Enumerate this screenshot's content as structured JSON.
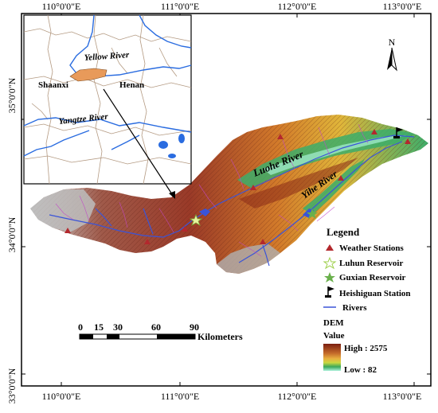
{
  "longitude_ticks": [
    "110°0'0\"E",
    "111°0'0\"E",
    "112°0'0\"E",
    "113°0'0\"E"
  ],
  "latitude_ticks": [
    "35°0'0\"N",
    "34°0'0\"N",
    "33°0'0\"N"
  ],
  "inset": {
    "rivers": {
      "yellow": "Yellow River",
      "yangtze": "Yangtze River"
    },
    "provinces": {
      "shaanxi": "Shaanxi",
      "henan": "Henan"
    }
  },
  "rivers": {
    "luohe": "Luohe River",
    "yihe": "Yihe River"
  },
  "north_arrow": {
    "label": "N"
  },
  "scale_bar": {
    "ticks": [
      "0",
      "15",
      "30",
      "60",
      "90"
    ],
    "unit": "Kilometers"
  },
  "legend": {
    "title": "Legend",
    "items": {
      "weather": "Weather Stations",
      "luhun": "Luhun Reservoir",
      "guxian": "Guxian Reservoir",
      "heishiguan": "Heishiguan Station",
      "rivers": "Rivers"
    },
    "dem": {
      "title_line1": "DEM",
      "title_line2": "Value",
      "high": "High : 2575",
      "low": "Low : 82"
    }
  },
  "colors": {
    "weather_station": "#b3282d",
    "luhun_reservoir": "#9ecf4a",
    "guxian_reservoir": "#6ab04c",
    "river": "#3a54d8",
    "inset_river": "#2a6ce0",
    "inset_boundary": "#b49a82",
    "basin_fill": "#e89a5a",
    "dem_high": "#7a1e10",
    "dem_low": "#a8f0d8"
  }
}
